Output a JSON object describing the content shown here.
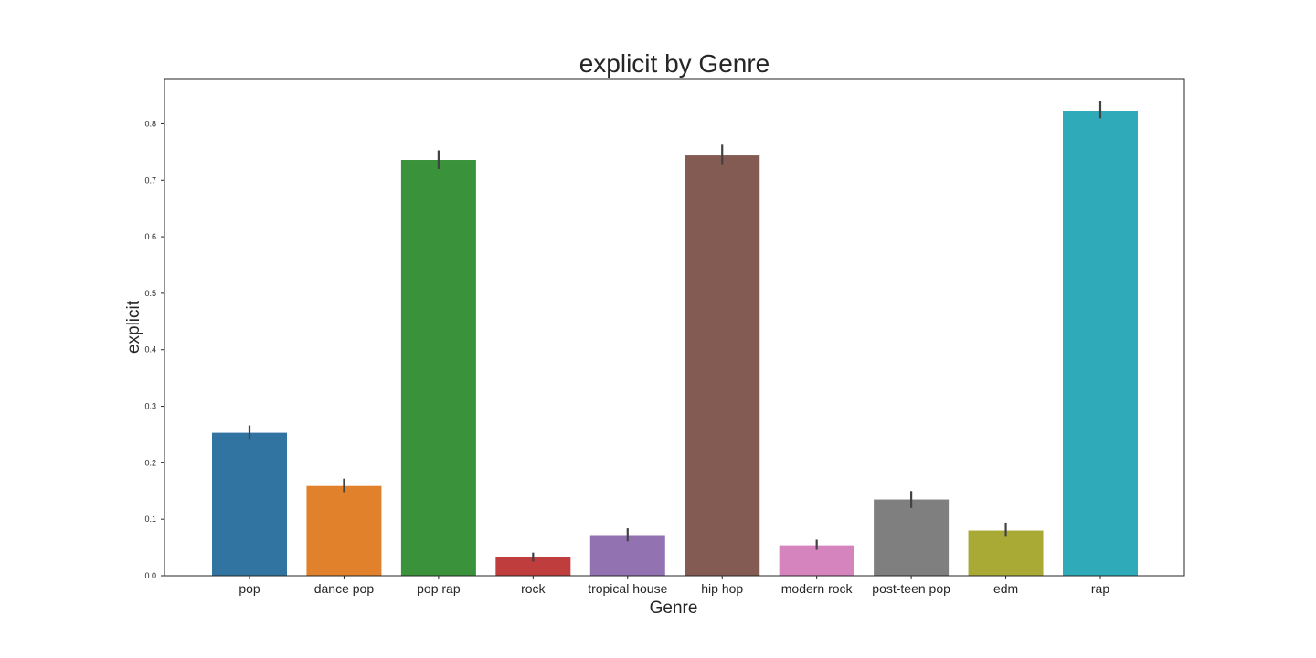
{
  "chart_data": {
    "type": "bar",
    "title": "explicit by Genre",
    "xlabel": "Genre",
    "ylabel": "explicit",
    "categories": [
      "pop",
      "dance pop",
      "pop rap",
      "rock",
      "tropical house",
      "hip hop",
      "modern rock",
      "post-teen pop",
      "edm",
      "rap"
    ],
    "values": [
      0.253,
      0.159,
      0.736,
      0.033,
      0.072,
      0.744,
      0.054,
      0.135,
      0.08,
      0.823
    ],
    "error_bars": [
      [
        0.242,
        0.266
      ],
      [
        0.148,
        0.172
      ],
      [
        0.72,
        0.753
      ],
      [
        0.025,
        0.041
      ],
      [
        0.061,
        0.084
      ],
      [
        0.727,
        0.763
      ],
      [
        0.046,
        0.064
      ],
      [
        0.12,
        0.15
      ],
      [
        0.069,
        0.094
      ],
      [
        0.81,
        0.84
      ]
    ],
    "colors": [
      "#3274a1",
      "#e1812c",
      "#3a923a",
      "#c03d3e",
      "#9372b2",
      "#845b53",
      "#d684bd",
      "#7f7f7f",
      "#a9aa35",
      "#2eaab8"
    ],
    "yticks": [
      "0.0",
      "0.1",
      "0.2",
      "0.3",
      "0.4",
      "0.5",
      "0.6",
      "0.7",
      "0.8"
    ],
    "ylim": [
      0,
      0.88
    ],
    "grid": false,
    "legend": false
  }
}
